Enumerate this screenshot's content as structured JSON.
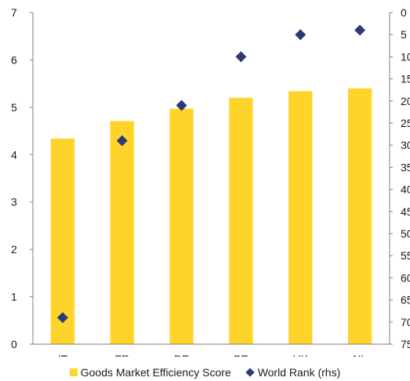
{
  "chart_data": {
    "type": "bar",
    "categories": [
      "IT",
      "FR",
      "DE",
      "BE",
      "UK",
      "NL"
    ],
    "series": [
      {
        "name": "Goods Market Efficiency Score",
        "type": "bar",
        "axis": "left",
        "values": [
          4.34,
          4.71,
          4.97,
          5.2,
          5.34,
          5.4
        ],
        "color": "#FFD42A"
      },
      {
        "name": "World Rank (rhs)",
        "type": "scatter",
        "axis": "right",
        "values": [
          69,
          29,
          21,
          10,
          5,
          4
        ],
        "color": "#2E3A78"
      }
    ],
    "ylim_left": [
      0,
      7
    ],
    "yticks_left": [
      "0",
      "1",
      "2",
      "3",
      "4",
      "5",
      "6",
      "7"
    ],
    "ylim_right": [
      0,
      75
    ],
    "right_axis_inverted": true,
    "yticks_right": [
      "0",
      "5",
      "10",
      "15",
      "20",
      "25",
      "30",
      "35",
      "40",
      "45",
      "50",
      "55",
      "60",
      "65",
      "70",
      "75"
    ],
    "legend_position": "bottom",
    "grid": false
  }
}
